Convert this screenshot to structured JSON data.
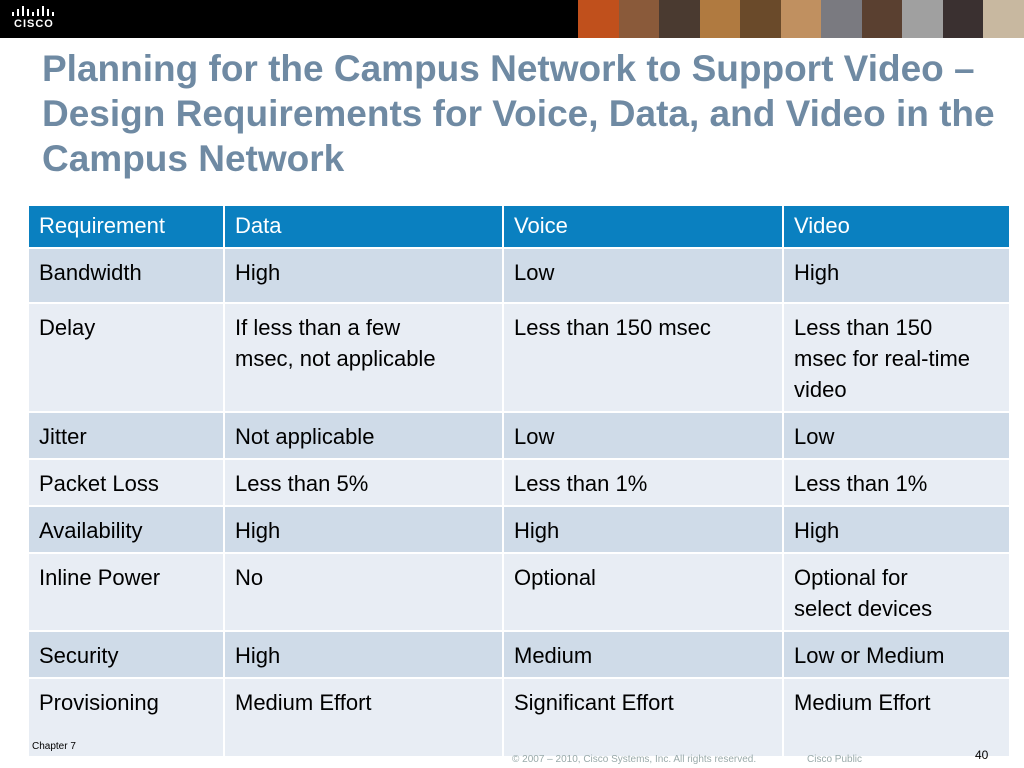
{
  "header": {
    "logo": "CISCO"
  },
  "title": "Planning for the Campus Network to Support Video – Design Requirements for Voice, Data, and Video in the Campus Network",
  "table": {
    "header": [
      "Requirement",
      "Data",
      "Voice",
      "Video"
    ],
    "rows": [
      [
        "Bandwidth",
        "High",
        "Low",
        "High"
      ],
      [
        "Delay",
        "If less than a few\nmsec, not applicable",
        "Less than 150 msec",
        "Less than 150\nmsec for real-time\nvideo"
      ],
      [
        "Jitter",
        "Not applicable",
        "Low",
        "Low"
      ],
      [
        "Packet Loss",
        "Less than 5%",
        "Less than 1%",
        "Less than 1%"
      ],
      [
        "Availability",
        "High",
        "High",
        "High"
      ],
      [
        "Inline Power",
        "No",
        "Optional",
        "Optional for\nselect devices"
      ],
      [
        "Security",
        "High",
        "Medium",
        "Low or Medium"
      ],
      [
        "Provisioning",
        "Medium Effort",
        "Significant Effort",
        "Medium Effort"
      ]
    ]
  },
  "footer": {
    "chapter": "Chapter 7",
    "copyright": "© 2007 – 2010, Cisco Systems, Inc. All rights reserved.",
    "classification": "Cisco Public",
    "page": "40"
  }
}
